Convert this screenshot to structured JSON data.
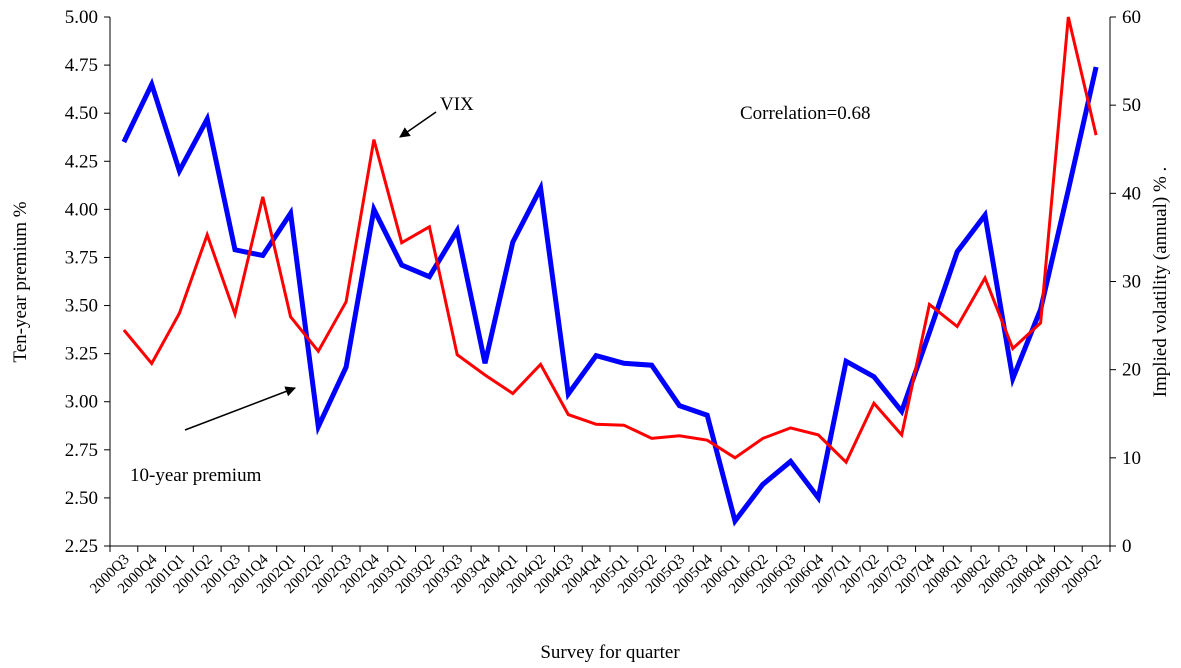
{
  "chart_data": {
    "type": "line",
    "xlabel": "Survey for quarter",
    "ylabel": "Ten-year premium %",
    "y2label": "Implied volatility (annual)  %   .",
    "annotation": "Correlation=0.68",
    "categories": [
      "2000Q3",
      "2000Q4",
      "2001Q1",
      "2001Q2",
      "2001Q3",
      "2001Q4",
      "2002Q1",
      "2002Q2",
      "2002Q3",
      "2002Q4",
      "2003Q1",
      "2003Q2",
      "2003Q3",
      "2003Q4",
      "2004Q1",
      "2004Q2",
      "2004Q3",
      "2004Q4",
      "2005Q1",
      "2005Q2",
      "2005Q3",
      "2005Q4",
      "2006Q1",
      "2006Q2",
      "2006Q3",
      "2006Q4",
      "2007Q1",
      "2007Q2",
      "2007Q3",
      "2007Q4",
      "2008Q1",
      "2008Q2",
      "2008Q3",
      "2008Q4",
      "2009Q1",
      "2009Q2"
    ],
    "series": [
      {
        "name": "10-year premium",
        "color": "#0000ff",
        "axis": "y",
        "values": [
          4.35,
          4.65,
          4.2,
          4.47,
          3.79,
          3.76,
          3.98,
          2.87,
          3.18,
          4.0,
          3.71,
          3.65,
          3.89,
          3.2,
          3.83,
          4.11,
          3.04,
          3.24,
          3.2,
          3.19,
          2.98,
          2.93,
          2.38,
          2.57,
          2.69,
          2.5,
          3.21,
          3.13,
          2.95,
          3.36,
          3.78,
          3.97,
          3.12,
          3.48,
          4.1,
          4.74
        ]
      },
      {
        "name": "VIX",
        "color": "#ff0000",
        "axis": "y2",
        "values": [
          24.5,
          20.7,
          26.4,
          35.3,
          26.3,
          39.6,
          26.0,
          22.1,
          27.7,
          46.1,
          34.4,
          36.2,
          21.7,
          19.4,
          17.3,
          20.6,
          14.9,
          13.8,
          13.7,
          12.2,
          12.5,
          12.0,
          10.0,
          12.2,
          13.4,
          12.6,
          9.5,
          16.2,
          12.6,
          27.4,
          24.9,
          30.4,
          22.4,
          25.3,
          60.0,
          46.6
        ]
      }
    ],
    "ylim": [
      2.25,
      5.0
    ],
    "yticks": [
      2.25,
      {
        "value": 2.5,
        "label": "2.50"
      },
      2.75,
      {
        "value": 3,
        "label": "3.00"
      },
      3.25,
      {
        "value": 3.5,
        "label": "3.50"
      },
      3.75,
      {
        "value": 4,
        "label": "4.00"
      },
      4.25,
      {
        "value": 4.5,
        "label": "4.50"
      },
      4.75,
      {
        "value": 5,
        "label": "5.00"
      }
    ],
    "y2lim": [
      0,
      60
    ],
    "y2ticks": [
      0,
      10,
      20,
      30,
      40,
      50,
      60
    ],
    "grid": false
  }
}
